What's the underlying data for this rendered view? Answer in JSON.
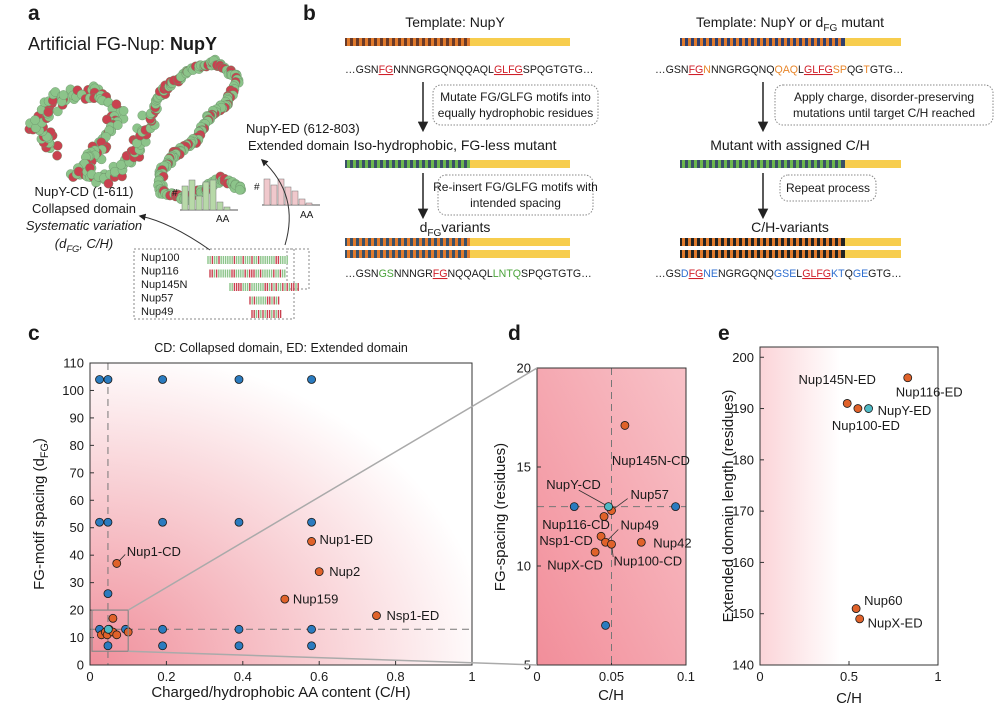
{
  "panel_a": {
    "label": "a",
    "title": "Artificial FG-Nup: ",
    "title_name": "NupY",
    "ed_label": "NupY-ED (612-803)",
    "ed_name": "Extended domain",
    "cd_label": "NupY-CD (1-611)",
    "cd_name": "Collapsed domain",
    "cd_note": "Systematic variation",
    "cd_params": [
      "(d",
      "FG",
      ", C/H)"
    ],
    "hist_y": "#",
    "hist_x": "AA",
    "nups": [
      "Nup100",
      "Nup116",
      "Nup145N",
      "Nup57",
      "Nup49"
    ]
  },
  "panel_b": {
    "label": "b",
    "left": {
      "template": [
        "Template: NupY"
      ],
      "seq_template": [
        {
          "text": "…GSN",
          "color": "#1a1a1a"
        },
        {
          "text": "FG",
          "color": "#d0202a",
          "underline": true
        },
        {
          "text": "NNNGRGQNQQAQL",
          "color": "#1a1a1a"
        },
        {
          "text": "GLFG",
          "color": "#d0202a",
          "underline": true
        },
        {
          "text": "SPQGTGTG…",
          "color": "#1a1a1a"
        }
      ],
      "step1": [
        "Mutate FG/GLFG motifs into",
        "equally hydrophobic residues"
      ],
      "intermediate": [
        "Iso-hydrophobic, FG-less mutant"
      ],
      "step2": [
        "Re-insert FG/GLFG motifs with",
        "intended spacing"
      ],
      "result": [
        "d",
        "FG",
        "variants"
      ],
      "seq_result": [
        {
          "text": "…GSN",
          "color": "#1a1a1a"
        },
        {
          "text": "GS",
          "color": "#4aa33a"
        },
        {
          "text": "NNNGR",
          "color": "#1a1a1a"
        },
        {
          "text": "FG",
          "color": "#d0202a",
          "underline": true
        },
        {
          "text": "NQQAQL",
          "color": "#1a1a1a"
        },
        {
          "text": "LNTQ",
          "color": "#4aa33a"
        },
        {
          "text": "SPQGTGTG…",
          "color": "#1a1a1a"
        }
      ]
    },
    "right": {
      "template": [
        "Template: NupY or d",
        "FG",
        " mutant"
      ],
      "seq_template": [
        {
          "text": "…GSN",
          "color": "#1a1a1a"
        },
        {
          "text": "FG",
          "color": "#d0202a",
          "underline": true
        },
        {
          "text": "N",
          "color": "#e8862a"
        },
        {
          "text": "NNGRGQNQ",
          "color": "#1a1a1a"
        },
        {
          "text": "QAQ",
          "color": "#e8862a"
        },
        {
          "text": "L",
          "color": "#1a1a1a"
        },
        {
          "text": "GLFG",
          "color": "#d0202a",
          "underline": true
        },
        {
          "text": "SP",
          "color": "#e8862a"
        },
        {
          "text": "QG",
          "color": "#1a1a1a"
        },
        {
          "text": "T",
          "color": "#e8862a"
        },
        {
          "text": "GTG…",
          "color": "#1a1a1a"
        }
      ],
      "step1": [
        "Apply charge, disorder-preserving",
        "mutations until target C/H reached"
      ],
      "intermediate": [
        "Mutant with assigned C/H"
      ],
      "step2": [
        "Repeat process"
      ],
      "result": [
        "C/H-variants"
      ],
      "seq_result": [
        {
          "text": "…GS",
          "color": "#1a1a1a"
        },
        {
          "text": "D",
          "color": "#2f6fd0"
        },
        {
          "text": "FG",
          "color": "#d0202a",
          "underline": true
        },
        {
          "text": "NE",
          "color": "#2f6fd0"
        },
        {
          "text": "NGRGQNQ",
          "color": "#1a1a1a"
        },
        {
          "text": "GSE",
          "color": "#2f6fd0"
        },
        {
          "text": "L",
          "color": "#1a1a1a"
        },
        {
          "text": "GLFG",
          "color": "#d0202a",
          "underline": true
        },
        {
          "text": "KT",
          "color": "#2f6fd0"
        },
        {
          "text": "Q",
          "color": "#1a1a1a"
        },
        {
          "text": "GE",
          "color": "#2f6fd0"
        },
        {
          "text": "GTG…",
          "color": "#1a1a1a"
        }
      ]
    }
  },
  "chart_data": [
    {
      "panel_label": "c",
      "type": "scatter",
      "title": "CD: Collapsed domain, ED: Extended domain",
      "x_label": "Charged/hydrophobic AA content (C/H)",
      "y_label": [
        "FG-motif spacing (d",
        "FG",
        ")"
      ],
      "xlim": [
        0,
        1
      ],
      "xticks": [
        0,
        0.2,
        0.4,
        0.6,
        0.8,
        1
      ],
      "ylim": [
        0,
        110
      ],
      "yticks": [
        0,
        10,
        20,
        30,
        40,
        50,
        60,
        70,
        80,
        90,
        100,
        110
      ],
      "reference_lines": {
        "x": 0.047,
        "y": 13
      },
      "series": [
        {
          "color": "#2b7bbf",
          "x": [
            0.025,
            0.047,
            0.19,
            0.39,
            0.58,
            0.025,
            0.047,
            0.19,
            0.39,
            0.58,
            0.047,
            0.025,
            0.093,
            0.19,
            0.39,
            0.58,
            0.047,
            0.19,
            0.39,
            0.58
          ],
          "values": [
            104,
            104,
            104,
            104,
            104,
            52,
            52,
            52,
            52,
            52,
            26,
            13,
            13,
            13,
            13,
            13,
            7,
            7,
            7,
            7
          ]
        },
        {
          "color": "#e0622a",
          "x": [
            0.07,
            0.58,
            0.6,
            0.51,
            0.75,
            0.03,
            0.04,
            0.045,
            0.05,
            0.06,
            0.06,
            0.07,
            0.1
          ],
          "values": [
            37,
            45,
            34,
            24,
            18,
            11,
            12,
            11,
            13,
            17,
            12,
            11,
            12
          ],
          "labels": [
            "Nup1-CD",
            "Nup1-ED",
            "Nup2",
            "Nup159",
            "Nsp1-ED",
            null,
            null,
            null,
            null,
            null,
            null,
            null,
            null
          ]
        },
        {
          "color": "#4fb9c4",
          "x": [
            0.048
          ],
          "values": [
            13
          ]
        }
      ]
    },
    {
      "panel_label": "d",
      "type": "scatter",
      "x_label": "C/H",
      "y_label": [
        "FG-spacing (residues)"
      ],
      "xlim": [
        0,
        0.1
      ],
      "xticks": [
        0,
        0.05,
        0.1
      ],
      "ylim": [
        5,
        20
      ],
      "yticks": [
        5,
        10,
        15,
        20
      ],
      "reference_lines": {
        "x": 0.05,
        "y": 13
      },
      "series": [
        {
          "color": "#2b7bbf",
          "x": [
            0.025,
            0.093,
            0.046
          ],
          "values": [
            13,
            13,
            7
          ]
        },
        {
          "color": "#e0622a",
          "x": [
            0.045,
            0.05,
            0.043,
            0.046,
            0.05,
            0.07,
            0.039,
            0.059
          ],
          "values": [
            12.5,
            12.8,
            11.5,
            11.2,
            11.1,
            11.2,
            10.7,
            17.1
          ],
          "labels": [
            "Nup116-CD",
            "Nup57",
            "Nsp1-CD",
            "Nup49",
            "Nup100-CD",
            "Nup42",
            "NupX-CD",
            "Nup145N-CD"
          ]
        },
        {
          "color": "#4fb9c4",
          "x": [
            0.048
          ],
          "values": [
            13
          ],
          "labels": [
            "NupY-CD"
          ]
        }
      ]
    },
    {
      "panel_label": "e",
      "type": "scatter",
      "x_label": "C/H",
      "y_label": [
        "Extended domain length (residues)"
      ],
      "xlim": [
        0,
        1
      ],
      "xticks": [
        0,
        0.5,
        1
      ],
      "ylim": [
        140,
        202
      ],
      "yticks": [
        140,
        150,
        160,
        170,
        180,
        190,
        200
      ],
      "series": [
        {
          "color": "#e0622a",
          "x": [
            0.83,
            0.49,
            0.55,
            0.54,
            0.56
          ],
          "values": [
            196,
            191,
            190,
            151,
            149
          ],
          "labels": [
            "Nup116-ED",
            "Nup145N-ED",
            "Nup100-ED",
            "Nup60",
            "NupX-ED"
          ]
        },
        {
          "color": "#4fb9c4",
          "x": [
            0.61
          ],
          "values": [
            190
          ],
          "labels": [
            "NupY-ED"
          ]
        }
      ]
    }
  ]
}
